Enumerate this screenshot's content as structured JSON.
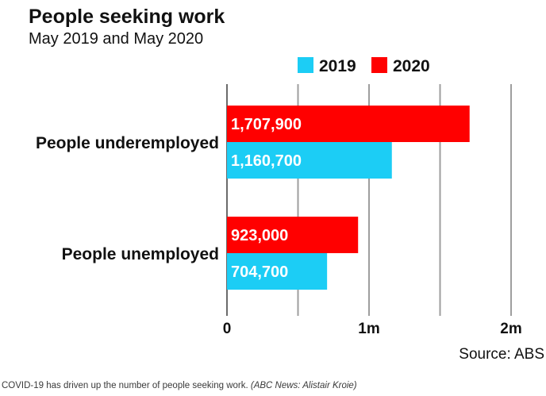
{
  "chart_data": {
    "type": "bar",
    "orientation": "horizontal",
    "title": "People seeking work",
    "subtitle": "May 2019 and May 2020",
    "categories": [
      "People underemployed",
      "People unemployed"
    ],
    "series": [
      {
        "name": "2020",
        "color": "#ff0000",
        "values": [
          1707900,
          923000
        ],
        "labels": [
          "1,707,900",
          "923,000"
        ]
      },
      {
        "name": "2019",
        "color": "#1ccdf5",
        "values": [
          1160700,
          704700
        ],
        "labels": [
          "1,160,700",
          "704,700"
        ]
      }
    ],
    "legend": [
      "2019",
      "2020"
    ],
    "legend_position": "top-right",
    "xlim": [
      0,
      2000000
    ],
    "x_ticks": [
      0,
      500000,
      1000000,
      1500000,
      2000000
    ],
    "x_tick_labels": [
      "0",
      "",
      "1m",
      "",
      "2m"
    ],
    "grid": true,
    "source": "Source: ABS"
  },
  "caption": {
    "text": "COVID-19 has driven up the number of people seeking work.",
    "credit": "(ABC News: Alistair Kroie)"
  }
}
